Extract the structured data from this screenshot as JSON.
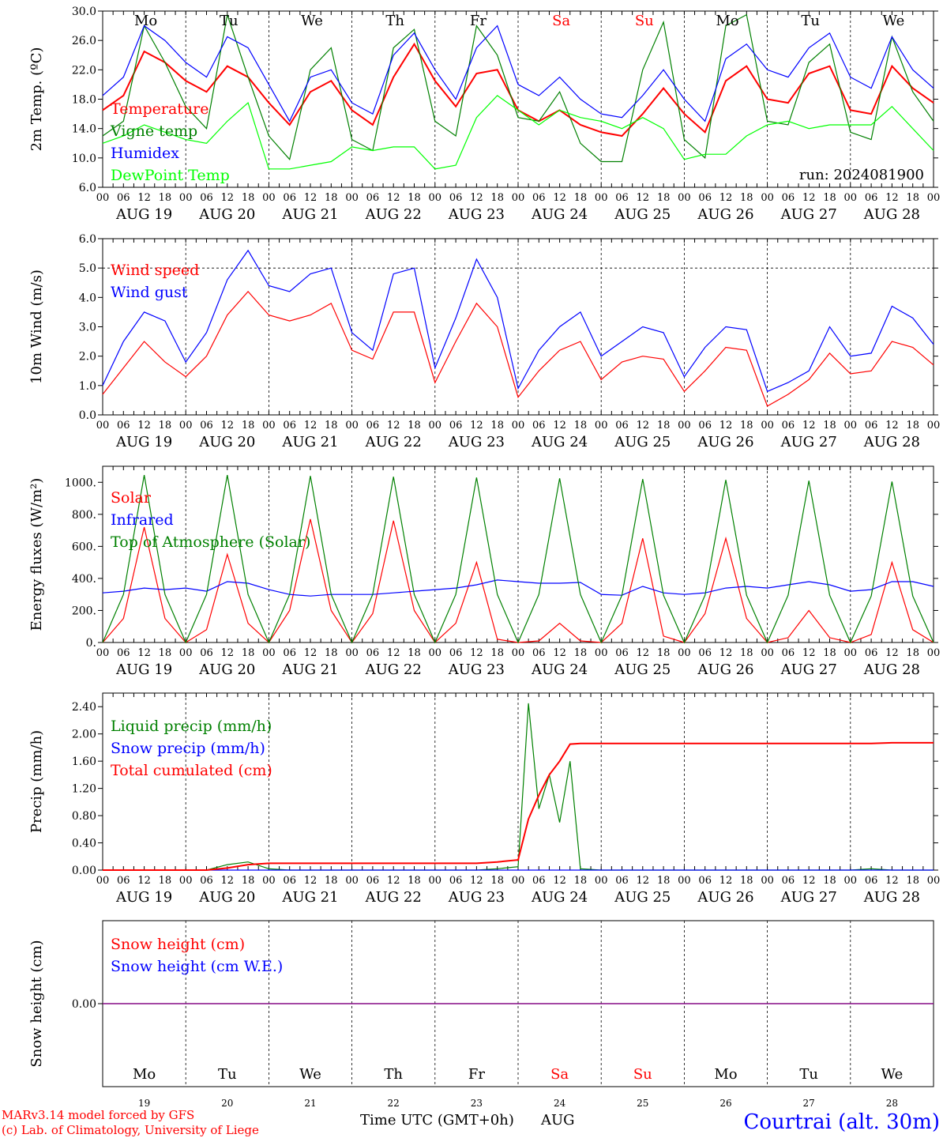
{
  "chart_data": [
    {
      "type": "line",
      "panel": "temperature",
      "ylabel": "2m Temp. (ºC)",
      "ylim": [
        6.0,
        30.0
      ],
      "yticks": [
        "6.0",
        "10.0",
        "14.0",
        "18.0",
        "22.0",
        "26.0",
        "30.0"
      ],
      "run_label": "run: 2024081900",
      "x": [
        "19 00",
        "19 06",
        "19 12",
        "19 18",
        "20 00",
        "20 06",
        "20 12",
        "20 18",
        "21 00",
        "21 06",
        "21 12",
        "21 18",
        "22 00",
        "22 06",
        "22 12",
        "22 18",
        "23 00",
        "23 06",
        "23 12",
        "23 18",
        "24 00",
        "24 06",
        "24 12",
        "24 18",
        "25 00",
        "25 06",
        "25 12",
        "25 18",
        "26 00",
        "26 06",
        "26 12",
        "26 18",
        "27 00",
        "27 06",
        "27 12",
        "27 18",
        "28 00",
        "28 06",
        "28 12",
        "28 18",
        "29 00"
      ],
      "series": [
        {
          "name": "Temperature",
          "color": "#ff0000",
          "values": [
            16.5,
            18.5,
            24.5,
            23.0,
            20.5,
            19.0,
            22.5,
            21.0,
            17.5,
            14.5,
            19.0,
            20.5,
            16.5,
            14.5,
            21.0,
            25.5,
            20.5,
            17.0,
            21.5,
            22.0,
            16.5,
            15.0,
            16.5,
            14.5,
            13.5,
            13.0,
            16.0,
            19.5,
            16.0,
            13.5,
            20.5,
            22.5,
            18.0,
            17.5,
            21.5,
            22.5,
            16.5,
            16.0,
            22.5,
            19.5,
            17.5
          ]
        },
        {
          "name": "Vigne temp",
          "color": "#008000",
          "values": [
            13.0,
            15.0,
            28.0,
            23.0,
            17.0,
            14.0,
            29.5,
            21.0,
            13.0,
            9.8,
            22.0,
            25.0,
            12.5,
            11.0,
            25.0,
            27.5,
            15.0,
            13.0,
            28.0,
            24.0,
            15.5,
            15.0,
            19.0,
            12.0,
            9.5,
            9.5,
            22.0,
            28.5,
            12.5,
            10.0,
            28.0,
            29.5,
            15.0,
            14.5,
            23.0,
            25.5,
            13.5,
            12.5,
            26.5,
            19.0,
            15.0
          ]
        },
        {
          "name": "Humidex",
          "color": "#0000ff",
          "values": [
            18.5,
            21.0,
            28.0,
            26.0,
            23.0,
            21.0,
            26.5,
            25.0,
            20.0,
            15.0,
            21.0,
            22.0,
            17.5,
            16.0,
            24.0,
            27.0,
            22.0,
            18.0,
            25.0,
            28.0,
            20.0,
            18.5,
            21.0,
            18.0,
            16.0,
            15.5,
            18.5,
            22.0,
            18.0,
            15.0,
            23.5,
            25.5,
            22.0,
            21.0,
            25.0,
            27.0,
            21.0,
            19.5,
            26.5,
            22.0,
            19.5
          ]
        },
        {
          "name": "DewPoint Temp",
          "color": "#00ff00",
          "values": [
            12.0,
            13.0,
            14.5,
            13.5,
            12.5,
            12.0,
            15.0,
            17.5,
            8.5,
            8.5,
            9.0,
            9.5,
            11.5,
            11.0,
            11.5,
            11.5,
            8.5,
            9.0,
            15.5,
            18.5,
            16.5,
            14.5,
            16.5,
            15.5,
            15.0,
            14.0,
            15.5,
            14.0,
            9.8,
            10.5,
            10.5,
            13.0,
            14.5,
            15.0,
            14.0,
            14.5,
            14.5,
            14.5,
            17.0,
            14.0,
            11.0
          ]
        }
      ]
    },
    {
      "type": "line",
      "panel": "wind",
      "ylabel": "10m Wind (m/s)",
      "ylim": [
        0.0,
        6.0
      ],
      "yticks": [
        "0.0",
        "1.0",
        "2.0",
        "3.0",
        "4.0",
        "5.0",
        "6.0"
      ],
      "x": [
        "19 00",
        "19 06",
        "19 12",
        "19 18",
        "20 00",
        "20 06",
        "20 12",
        "20 18",
        "21 00",
        "21 06",
        "21 12",
        "21 18",
        "22 00",
        "22 06",
        "22 12",
        "22 18",
        "23 00",
        "23 06",
        "23 12",
        "23 18",
        "24 00",
        "24 06",
        "24 12",
        "24 18",
        "25 00",
        "25 06",
        "25 12",
        "25 18",
        "26 00",
        "26 06",
        "26 12",
        "26 18",
        "27 00",
        "27 06",
        "27 12",
        "27 18",
        "28 00",
        "28 06",
        "28 12",
        "28 18",
        "29 00"
      ],
      "series": [
        {
          "name": "Wind speed",
          "color": "#ff0000",
          "values": [
            0.7,
            1.6,
            2.5,
            1.8,
            1.3,
            2.0,
            3.4,
            4.2,
            3.4,
            3.2,
            3.4,
            3.8,
            2.2,
            1.9,
            3.5,
            3.5,
            1.1,
            2.5,
            3.8,
            3.0,
            0.6,
            1.5,
            2.2,
            2.5,
            1.2,
            1.8,
            2.0,
            1.9,
            0.8,
            1.5,
            2.3,
            2.2,
            0.3,
            0.7,
            1.2,
            2.1,
            1.4,
            1.5,
            2.5,
            2.3,
            1.7
          ]
        },
        {
          "name": "Wind gust",
          "color": "#0000ff",
          "values": [
            1.0,
            2.5,
            3.5,
            3.2,
            1.8,
            2.8,
            4.6,
            5.6,
            4.4,
            4.2,
            4.8,
            5.0,
            2.8,
            2.2,
            4.8,
            5.0,
            1.6,
            3.3,
            5.3,
            4.0,
            0.9,
            2.2,
            3.0,
            3.5,
            2.0,
            2.5,
            3.0,
            2.8,
            1.3,
            2.3,
            3.0,
            2.9,
            0.8,
            1.1,
            1.5,
            3.0,
            2.0,
            2.1,
            3.7,
            3.3,
            2.4
          ]
        }
      ]
    },
    {
      "type": "line",
      "panel": "energy",
      "ylabel": "Energy fluxes (W/m²)",
      "ylim": [
        0,
        1100
      ],
      "yticks": [
        "0.",
        "200.",
        "400.",
        "600.",
        "800.",
        "1000."
      ],
      "x": [
        "19 00",
        "19 06",
        "19 12",
        "19 18",
        "20 00",
        "20 06",
        "20 12",
        "20 18",
        "21 00",
        "21 06",
        "21 12",
        "21 18",
        "22 00",
        "22 06",
        "22 12",
        "22 18",
        "23 00",
        "23 06",
        "23 12",
        "23 18",
        "24 00",
        "24 06",
        "24 12",
        "24 18",
        "25 00",
        "25 06",
        "25 12",
        "25 18",
        "26 00",
        "26 06",
        "26 12",
        "26 18",
        "27 00",
        "27 06",
        "27 12",
        "27 18",
        "28 00",
        "28 06",
        "28 12",
        "28 18",
        "29 00"
      ],
      "series": [
        {
          "name": "Solar",
          "color": "#ff0000",
          "values": [
            0,
            150,
            720,
            150,
            0,
            80,
            550,
            120,
            0,
            200,
            770,
            200,
            0,
            180,
            760,
            200,
            0,
            120,
            500,
            20,
            0,
            10,
            120,
            10,
            0,
            120,
            650,
            40,
            0,
            180,
            650,
            150,
            0,
            30,
            200,
            30,
            0,
            50,
            500,
            80,
            0
          ]
        },
        {
          "name": "Infrared",
          "color": "#0000ff",
          "values": [
            310,
            320,
            340,
            330,
            340,
            320,
            380,
            370,
            330,
            300,
            290,
            300,
            300,
            300,
            310,
            320,
            330,
            340,
            360,
            390,
            380,
            370,
            370,
            375,
            300,
            295,
            350,
            310,
            300,
            310,
            340,
            350,
            340,
            360,
            380,
            360,
            320,
            330,
            380,
            380,
            350
          ]
        },
        {
          "name": "Top of Atmosphere (Solar)",
          "color": "#008000",
          "values": [
            0,
            300,
            1045,
            300,
            0,
            300,
            1045,
            300,
            0,
            300,
            1040,
            300,
            0,
            300,
            1035,
            300,
            0,
            300,
            1030,
            300,
            0,
            300,
            1025,
            300,
            0,
            295,
            1020,
            295,
            0,
            295,
            1015,
            295,
            0,
            295,
            1010,
            295,
            0,
            290,
            1005,
            290,
            0
          ]
        }
      ]
    },
    {
      "type": "line",
      "panel": "precip",
      "ylabel": "Precip (mm/h)",
      "ylim": [
        0.0,
        2.6
      ],
      "yticks": [
        "0.00",
        "0.40",
        "0.80",
        "1.20",
        "1.60",
        "2.00",
        "2.40"
      ],
      "x": [
        "19 00",
        "19 06",
        "19 12",
        "19 18",
        "20 00",
        "20 06",
        "20 12",
        "20 18",
        "21 00",
        "21 06",
        "21 12",
        "21 18",
        "22 00",
        "22 06",
        "22 12",
        "22 18",
        "23 00",
        "23 06",
        "23 12",
        "23 18",
        "24 00",
        "24 03",
        "24 06",
        "24 09",
        "24 12",
        "24 15",
        "24 18",
        "25 00",
        "25 06",
        "25 12",
        "25 18",
        "26 00",
        "26 06",
        "26 12",
        "26 18",
        "27 00",
        "27 06",
        "27 12",
        "27 18",
        "28 00",
        "28 06",
        "28 12",
        "28 18",
        "29 00"
      ],
      "series": [
        {
          "name": "Liquid precip (mm/h)",
          "color": "#008000",
          "values": [
            0,
            0,
            0,
            0,
            0,
            0,
            0.08,
            0.12,
            0.02,
            0,
            0,
            0,
            0,
            0,
            0,
            0,
            0,
            0,
            0,
            0.02,
            0.05,
            2.45,
            0.9,
            1.4,
            0.7,
            1.6,
            0.02,
            0,
            0,
            0,
            0,
            0,
            0,
            0,
            0,
            0,
            0,
            0,
            0,
            0,
            0.02,
            0,
            0,
            0
          ]
        },
        {
          "name": "Snow precip (mm/h)",
          "color": "#0000ff",
          "values": [
            0,
            0,
            0,
            0,
            0,
            0,
            0,
            0,
            0,
            0,
            0,
            0,
            0,
            0,
            0,
            0,
            0,
            0,
            0,
            0,
            0,
            0,
            0,
            0,
            0,
            0,
            0,
            0,
            0,
            0,
            0,
            0,
            0,
            0,
            0,
            0,
            0,
            0,
            0,
            0,
            0,
            0,
            0,
            0
          ]
        },
        {
          "name": "Total cumulated (cm)",
          "color": "#ff0000",
          "values": [
            0,
            0,
            0,
            0,
            0,
            0,
            0.03,
            0.08,
            0.1,
            0.1,
            0.1,
            0.1,
            0.1,
            0.1,
            0.1,
            0.1,
            0.1,
            0.1,
            0.1,
            0.12,
            0.15,
            0.75,
            1.1,
            1.4,
            1.6,
            1.85,
            1.86,
            1.86,
            1.86,
            1.86,
            1.86,
            1.86,
            1.86,
            1.86,
            1.86,
            1.86,
            1.86,
            1.86,
            1.86,
            1.86,
            1.86,
            1.87,
            1.87,
            1.87
          ]
        }
      ]
    },
    {
      "type": "line",
      "panel": "snow",
      "ylabel": "Snow height (cm)",
      "ylim": [
        -1.0,
        1.0
      ],
      "yticks": [
        "0.00"
      ],
      "x": [
        "19 00",
        "29 00"
      ],
      "series": [
        {
          "name": "Snow height (cm)",
          "color": "#ff0000",
          "values": [
            0,
            0
          ]
        },
        {
          "name": "Snow height (cm W.E.)",
          "color": "#0000ff",
          "values": [
            0,
            0
          ]
        }
      ]
    }
  ],
  "hour_ticks": [
    "00",
    "06",
    "12",
    "18"
  ],
  "day_ticks": [
    "AUG 19",
    "AUG 20",
    "AUG 21",
    "AUG 22",
    "AUG 23",
    "AUG 24",
    "AUG 25",
    "AUG 26",
    "AUG 27",
    "AUG 28"
  ],
  "weekdays": [
    {
      "label": "Mo",
      "color": "#000000"
    },
    {
      "label": "Tu",
      "color": "#000000"
    },
    {
      "label": "We",
      "color": "#000000"
    },
    {
      "label": "Th",
      "color": "#000000"
    },
    {
      "label": "Fr",
      "color": "#000000"
    },
    {
      "label": "Sa",
      "color": "#ff0000"
    },
    {
      "label": "Su",
      "color": "#ff0000"
    },
    {
      "label": "Mo",
      "color": "#000000"
    },
    {
      "label": "Tu",
      "color": "#000000"
    },
    {
      "label": "We",
      "color": "#000000"
    }
  ],
  "day_numbers": [
    "19",
    "20",
    "21",
    "22",
    "23",
    "24",
    "25",
    "26",
    "27",
    "28"
  ],
  "footer": {
    "model_line": "MARv3.14 model forced by GFS",
    "credit_line": "(c) Lab. of Climatology, University of Liege",
    "xlabel": "Time UTC (GMT+0h)",
    "month": "AUG",
    "location": "Courtrai (alt. 30m)"
  },
  "colors": {
    "grid": "#000000",
    "snow_line": "#800080"
  }
}
